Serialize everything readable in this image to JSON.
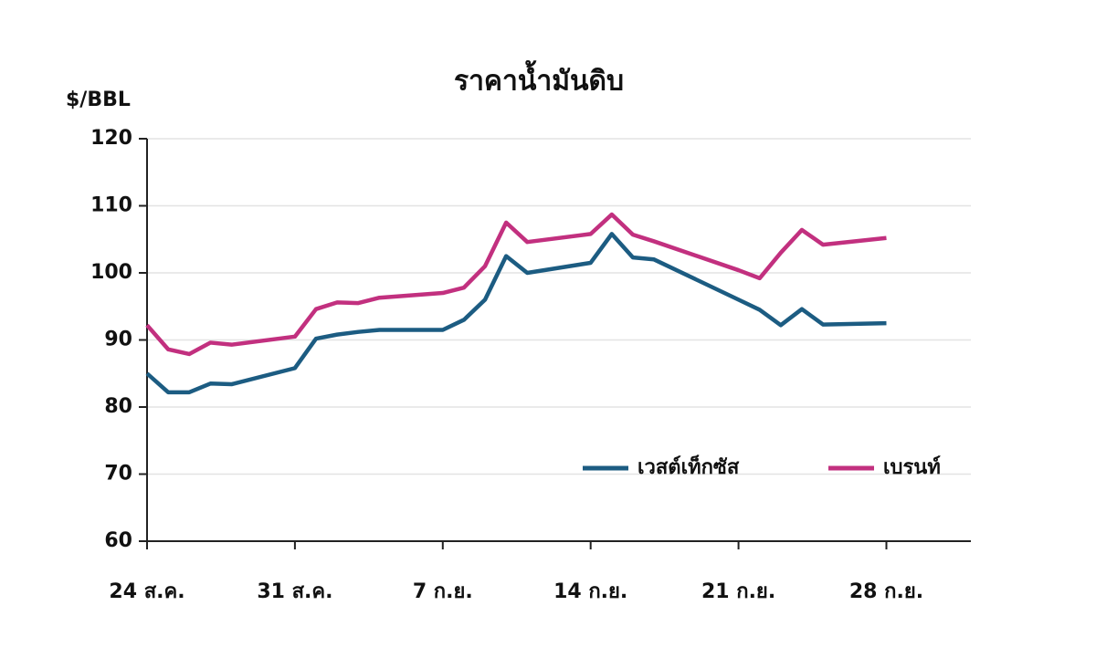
{
  "chart_data": {
    "type": "line",
    "title": "ราคาน้ำมันดิบ",
    "y_label": "$/BBL",
    "x": [
      0,
      1,
      2,
      3,
      4,
      7,
      8,
      9,
      10,
      11,
      14,
      15,
      16,
      17,
      18,
      21,
      22,
      23,
      24,
      28,
      29,
      30,
      31,
      32,
      35
    ],
    "series": [
      {
        "name": "เวสต์เท็กซัส",
        "color": "#1c5c82",
        "values": [
          85,
          82.2,
          82.2,
          83.5,
          83.4,
          85.8,
          90.2,
          90.8,
          91.2,
          91.5,
          91.5,
          93,
          96,
          102.5,
          100,
          101.5,
          105.8,
          102.3,
          102,
          96,
          94.5,
          92.2,
          94.6,
          92.3,
          92.5
        ]
      },
      {
        "name": "เบรนท์",
        "color": "#c2307f",
        "values": [
          92.2,
          88.6,
          87.9,
          89.6,
          89.3,
          90.5,
          94.6,
          95.6,
          95.5,
          96.3,
          97,
          97.8,
          101,
          107.5,
          104.6,
          105.8,
          108.7,
          105.7,
          104.7,
          100.4,
          99.2,
          103,
          106.4,
          104.2,
          105.2
        ]
      }
    ],
    "xlim": [
      0,
      39
    ],
    "xticks": [
      {
        "value": 0,
        "label": "24 ส.ค."
      },
      {
        "value": 7,
        "label": "31 ส.ค."
      },
      {
        "value": 14,
        "label": "7 ก.ย."
      },
      {
        "value": 21,
        "label": "14 ก.ย."
      },
      {
        "value": 28,
        "label": "21 ก.ย."
      },
      {
        "value": 35,
        "label": "28 ก.ย."
      }
    ],
    "ylim": [
      60,
      120
    ],
    "yticks": [
      60,
      70,
      80,
      90,
      100,
      110,
      120
    ],
    "grid": true,
    "legend": "lower right"
  }
}
